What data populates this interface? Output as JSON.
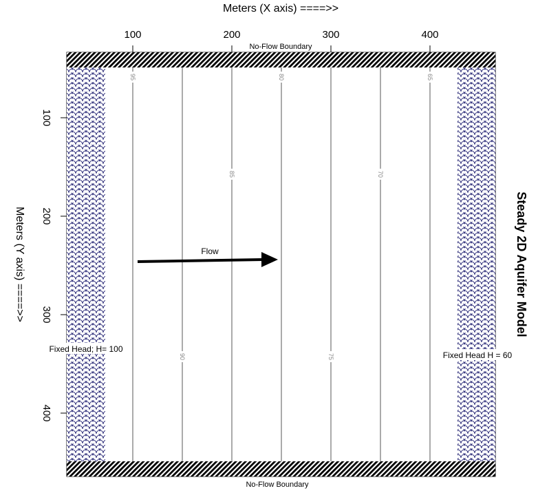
{
  "diagram": {
    "x_axis_title": "Meters (X axis) ====>>",
    "y_axis_title": "Meters (Y axis) ====>>",
    "side_title": "Steady 2D Aquifer Model",
    "x_ticks": [
      100,
      200,
      300,
      400
    ],
    "y_ticks": [
      100,
      200,
      300,
      400
    ],
    "top_boundary_label": "No-Flow Boundary",
    "bottom_boundary_label": "No-Flow Boundary",
    "left_head_label": "Fixed Head; H= 100",
    "right_head_label": "Fixed Head H = 60",
    "flow_label": "Flow",
    "contours": [
      {
        "value": 95,
        "x": 100
      },
      {
        "value": 90,
        "x": 150
      },
      {
        "value": 85,
        "x": 200
      },
      {
        "value": 80,
        "x": 250
      },
      {
        "value": 75,
        "x": 300
      },
      {
        "value": 70,
        "x": 350
      },
      {
        "value": 65,
        "x": 400
      }
    ],
    "colors": {
      "boundary_fill": "#000000",
      "fixed_head_pattern": "#1a1a6e",
      "contour_line": "#555555",
      "contour_label": "#8a8a8a",
      "arrow": "#000000"
    }
  }
}
